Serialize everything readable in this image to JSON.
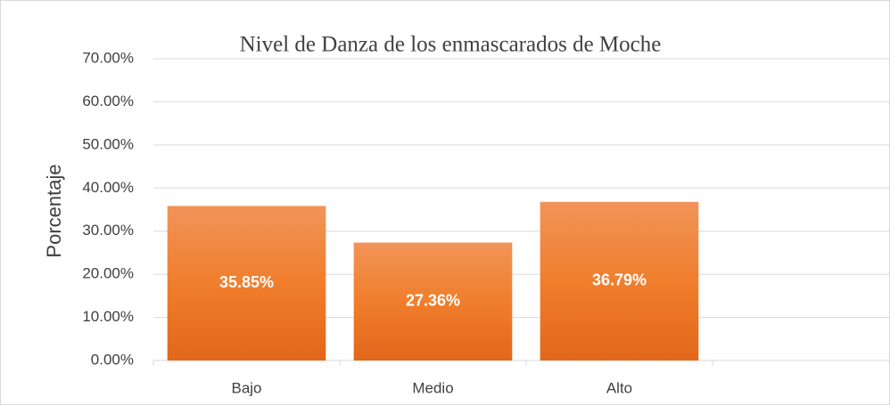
{
  "chart_data": {
    "type": "bar",
    "title": "Nivel de Danza de los enmascarados de Moche",
    "y_label": "Porcentaje",
    "categories": [
      "Bajo",
      "Medio",
      "Alto",
      null
    ],
    "values": [
      35.85,
      27.36,
      36.79,
      null
    ],
    "value_labels": [
      "35.85%",
      "27.36%",
      "36.79%",
      null
    ],
    "color": "#f07e2c",
    "ylim": [
      0,
      70
    ],
    "yticks": [
      {
        "value": 0,
        "label": "0.00%"
      },
      {
        "value": 10,
        "label": "10.00%"
      },
      {
        "value": 20,
        "label": "20.00%"
      },
      {
        "value": 30,
        "label": "30.00%"
      },
      {
        "value": 40,
        "label": "40.00%"
      },
      {
        "value": 50,
        "label": "50.00%"
      },
      {
        "value": 60,
        "label": "60.00%"
      },
      {
        "value": 70,
        "label": "70.00%"
      }
    ],
    "grid": true
  }
}
